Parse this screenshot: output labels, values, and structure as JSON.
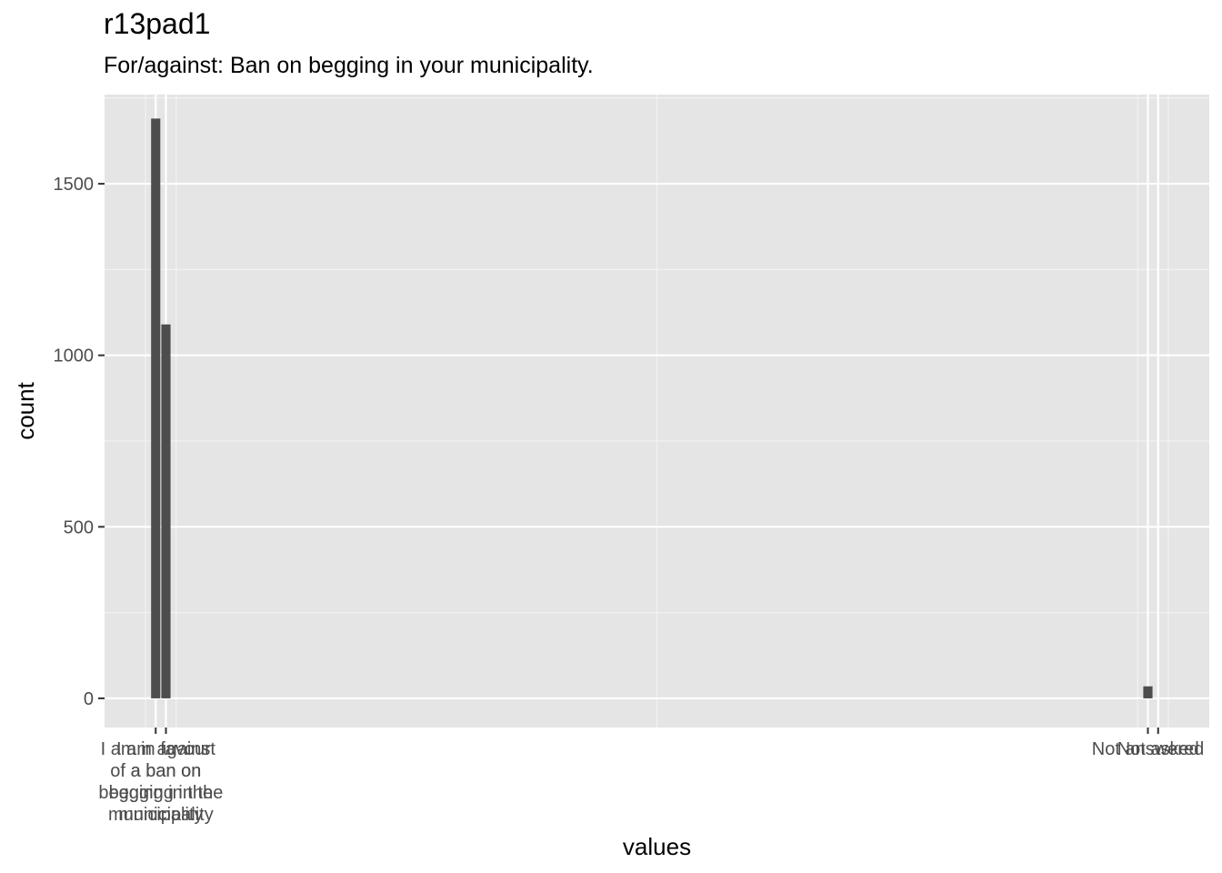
{
  "chart_data": {
    "type": "bar",
    "title": "r13pad1",
    "subtitle": "For/against: Ban on begging in your municipality.",
    "xlabel": "values",
    "ylabel": "count",
    "ylim": [
      -85,
      1760
    ],
    "y_ticks": [
      0,
      500,
      1000,
      1500
    ],
    "y_tick_labels": [
      "0",
      "500",
      "1000",
      "1500"
    ],
    "grid": true,
    "x_ticks": [
      {
        "x": 1,
        "label": [
          "I am in favour",
          "of a ban on",
          "begging in the",
          "municipality"
        ]
      },
      {
        "x": 2,
        "label": [
          "I am against",
          "a ban on",
          "begging in the",
          "municipality"
        ]
      },
      {
        "x": 98,
        "label": [
          "Not answered"
        ]
      },
      {
        "x": 99,
        "label": [
          "Not asked"
        ]
      }
    ],
    "xlim": [
      -4,
      104
    ],
    "bars": [
      {
        "x": 1,
        "value": 1690
      },
      {
        "x": 2,
        "value": 1090
      },
      {
        "x": 98,
        "value": 35
      }
    ],
    "bar_color": "#4d4d4d",
    "panel_color": "#e5e5e5"
  }
}
